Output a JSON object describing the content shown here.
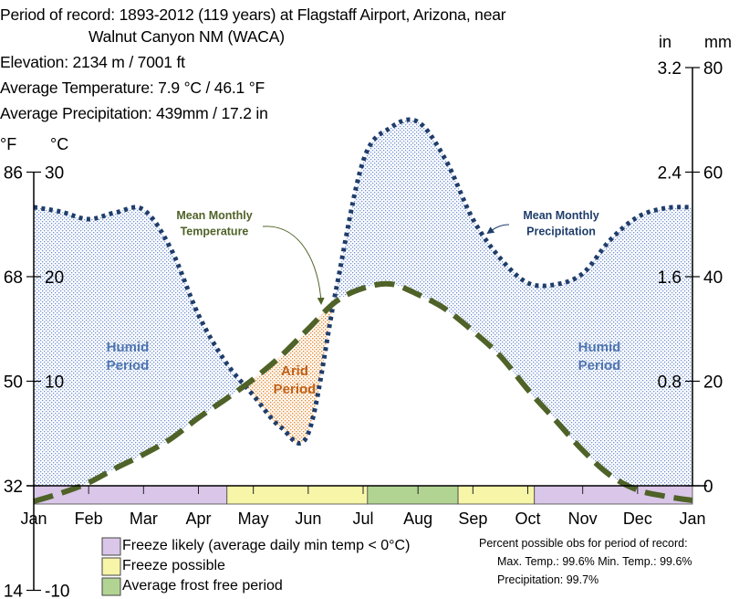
{
  "header": {
    "line1": "Period of record: 1893-2012  (119 years) at Flagstaff Airport, Arizona, near",
    "line2": "Walnut Canyon NM (WACA)",
    "elevation": "Elevation: 2134 m / 7001 ft",
    "avg_temp": "Average Temperature: 7.9 °C / 46.1 °F",
    "avg_precip": "Average Precipitation: 439mm / 17.2 in"
  },
  "notes": {
    "line1": "Percent possible obs for period of record:",
    "line2": "Max. Temp.: 99.6% Min. Temp.: 99.6%",
    "line3": "Precipitation: 99.7%"
  },
  "chart_data": {
    "type": "line",
    "title": "",
    "x_unit": "month position (0 = Jan 1, 12 = following Jan 1)",
    "x": [
      0,
      0.5,
      1,
      1.5,
      2,
      2.5,
      3,
      3.5,
      4,
      4.5,
      5,
      5.5,
      6,
      6.5,
      7,
      7.5,
      8,
      8.5,
      9,
      9.5,
      10,
      10.5,
      11,
      11.5,
      12
    ],
    "xtick_labels": [
      "Jan",
      "Feb",
      "Mar",
      "Apr",
      "May",
      "Jun",
      "Jul",
      "Aug",
      "Sep",
      "Oct",
      "Nov",
      "Dec",
      "Jan"
    ],
    "series": [
      {
        "name": "Mean Monthly Temperature",
        "unit": "°C",
        "axis": "left",
        "color": "#4f6228",
        "style": "dashed",
        "values": [
          -1.5,
          -0.7,
          0.3,
          1.7,
          3.0,
          4.5,
          6.5,
          8.3,
          10.2,
          12.4,
          15.0,
          17.6,
          18.9,
          19.3,
          18.3,
          16.9,
          14.8,
          12.4,
          9.2,
          6.3,
          3.4,
          1.0,
          -0.4,
          -1.0,
          -1.4
        ]
      },
      {
        "name": "Mean Monthly Precipitation",
        "unit": "mm",
        "axis": "right",
        "color": "#1f3d6b",
        "style": "dotted",
        "values": [
          53.3,
          52.4,
          51.0,
          52.3,
          52.8,
          45.3,
          32.7,
          23.6,
          17.3,
          11.2,
          10.0,
          37.1,
          62.1,
          68.5,
          69.6,
          62.4,
          51.0,
          43.5,
          38.8,
          38.5,
          40.6,
          47.0,
          51.4,
          53.1,
          53.3
        ]
      }
    ],
    "left_axis": {
      "label_f": "°F",
      "label_c": "°C",
      "ylim_c": [
        -10,
        30
      ],
      "ticks": [
        {
          "f": "86",
          "c": "30",
          "v": 30
        },
        {
          "f": "68",
          "c": "20",
          "v": 20
        },
        {
          "f": "50",
          "c": "10",
          "v": 10
        },
        {
          "f": "32",
          "c": "",
          "v": 0
        },
        {
          "f": "14",
          "c": "-10",
          "v": -10
        }
      ]
    },
    "right_axis": {
      "label_in": "in",
      "label_mm": "mm",
      "ylim_mm": [
        0,
        80
      ],
      "ticks": [
        {
          "in": "3.2",
          "mm": "80",
          "v": 80
        },
        {
          "in": "2.4",
          "mm": "60",
          "v": 60
        },
        {
          "in": "1.6",
          "mm": "40",
          "v": 40
        },
        {
          "in": "0.8",
          "mm": "20",
          "v": 20
        },
        {
          "in": "",
          "mm": "0",
          "v": 0
        }
      ]
    },
    "annotations": {
      "temp_label": [
        "Mean Monthly",
        "Temperature"
      ],
      "precip_label": [
        "Mean Monthly",
        "Precipitation"
      ],
      "humid": [
        "Humid",
        "Period"
      ],
      "arid": [
        "Arid",
        "Period"
      ]
    },
    "colors": {
      "humid": "#4f76b0",
      "arid": "#c0631a",
      "humid_fill": "#6f8fd0",
      "arid_fill": "#e8892f"
    },
    "freeze_periods": [
      {
        "type": "likely",
        "start": 0,
        "end": 3.52
      },
      {
        "type": "possible",
        "start": 3.52,
        "end": 6.08
      },
      {
        "type": "frost_free",
        "start": 6.08,
        "end": 7.73
      },
      {
        "type": "possible",
        "start": 7.73,
        "end": 9.12
      },
      {
        "type": "likely",
        "start": 9.12,
        "end": 12
      }
    ],
    "legend": [
      {
        "type": "likely",
        "label": "Freeze likely (average daily min temp < 0°C)",
        "color": "#d9c6e8"
      },
      {
        "type": "possible",
        "label": "Freeze possible",
        "color": "#f7f5a8"
      },
      {
        "type": "frost_free",
        "label": "Average frost free period",
        "color": "#b2d493"
      }
    ]
  }
}
